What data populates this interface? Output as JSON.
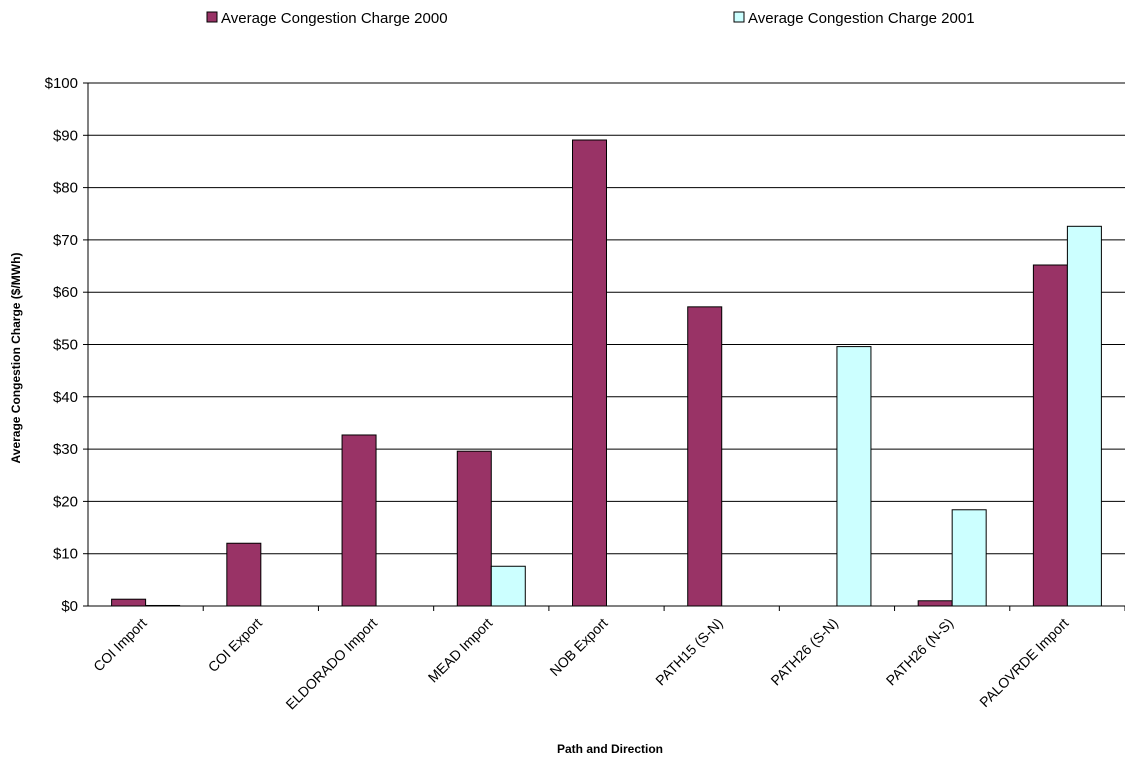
{
  "chart_data": {
    "type": "bar",
    "categories": [
      "COI Import",
      "COI Export",
      "ELDORADO Import",
      "MEAD Import",
      "NOB Export",
      "PATH15 (S-N)",
      "PATH26 (S-N)",
      "PATH26 (N-S)",
      "PALOVRDE Import"
    ],
    "series": [
      {
        "name": "Average Congestion Charge 2000",
        "color": "#993366",
        "values": [
          1.3,
          12.0,
          32.7,
          29.6,
          89.1,
          57.2,
          null,
          1.0,
          65.2
        ]
      },
      {
        "name": "Average Congestion Charge 2001",
        "color": "#CCFFFF",
        "values": [
          0.1,
          null,
          null,
          7.6,
          null,
          null,
          49.6,
          18.4,
          72.6
        ]
      }
    ],
    "xlabel": "Path and Direction",
    "ylabel": "Average Congestion Charge ($/MWh)",
    "ylim": [
      0,
      100
    ],
    "yticks": [
      0,
      10,
      20,
      30,
      40,
      50,
      60,
      70,
      80,
      90,
      100
    ],
    "ytick_labels": [
      "$0",
      "$10",
      "$20",
      "$30",
      "$40",
      "$50",
      "$60",
      "$70",
      "$80",
      "$90",
      "$100"
    ],
    "grid": true,
    "legend_position": "top"
  }
}
